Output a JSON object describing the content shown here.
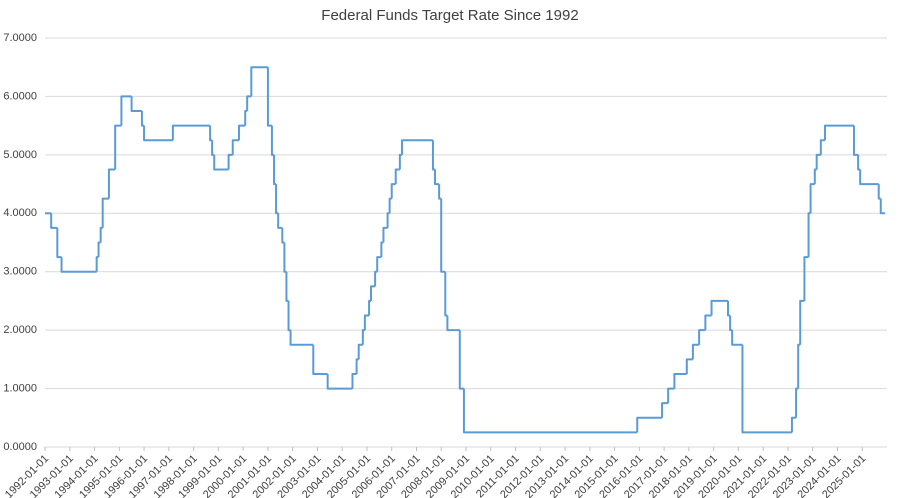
{
  "chart_data": {
    "type": "line",
    "title": "Federal Funds Target Rate Since 1992",
    "color": "#5b9bd5",
    "grid": true,
    "step": true,
    "x": [
      "1992-01-01",
      "1992-04-01",
      "1992-07-01",
      "1992-09-01",
      "1994-02-01",
      "1994-03-01",
      "1994-04-01",
      "1994-05-01",
      "1994-08-01",
      "1994-11-01",
      "1995-02-01",
      "1995-07-01",
      "1995-12-01",
      "1996-01-01",
      "1997-03-01",
      "1998-09-01",
      "1998-10-01",
      "1998-11-01",
      "1999-06-01",
      "1999-08-01",
      "1999-11-01",
      "2000-02-01",
      "2000-03-01",
      "2000-05-01",
      "2001-01-01",
      "2001-03-01",
      "2001-04-01",
      "2001-05-01",
      "2001-06-01",
      "2001-08-01",
      "2001-09-01",
      "2001-10-01",
      "2001-11-01",
      "2001-12-01",
      "2002-11-01",
      "2003-06-01",
      "2004-06-01",
      "2004-08-01",
      "2004-09-01",
      "2004-11-01",
      "2004-12-01",
      "2005-02-01",
      "2005-03-01",
      "2005-05-01",
      "2005-06-01",
      "2005-08-01",
      "2005-09-01",
      "2005-11-01",
      "2005-12-01",
      "2006-01-01",
      "2006-03-01",
      "2006-05-01",
      "2006-06-01",
      "2007-09-01",
      "2007-10-01",
      "2007-12-01",
      "2008-01-01",
      "2008-03-01",
      "2008-04-01",
      "2008-10-01",
      "2008-12-01",
      "2015-12-01",
      "2016-12-01",
      "2017-03-01",
      "2017-06-01",
      "2017-12-01",
      "2018-03-01",
      "2018-06-01",
      "2018-09-01",
      "2018-12-01",
      "2019-08-01",
      "2019-09-01",
      "2019-10-01",
      "2020-03-01",
      "2022-03-01",
      "2022-05-01",
      "2022-06-01",
      "2022-07-01",
      "2022-09-01",
      "2022-11-01",
      "2022-12-01",
      "2023-02-01",
      "2023-03-01",
      "2023-05-01",
      "2023-07-01",
      "2024-09-01",
      "2024-11-01",
      "2024-12-01",
      "2025-09-01",
      "2025-10-01",
      "2025-12-01"
    ],
    "values": [
      4.0,
      3.75,
      3.25,
      3.0,
      3.25,
      3.5,
      3.75,
      4.25,
      4.75,
      5.5,
      6.0,
      5.75,
      5.5,
      5.25,
      5.5,
      5.25,
      5.0,
      4.75,
      5.0,
      5.25,
      5.5,
      5.75,
      6.0,
      6.5,
      5.5,
      5.0,
      4.5,
      4.0,
      3.75,
      3.5,
      3.0,
      2.5,
      2.0,
      1.75,
      1.25,
      1.0,
      1.25,
      1.5,
      1.75,
      2.0,
      2.25,
      2.5,
      2.75,
      3.0,
      3.25,
      3.5,
      3.75,
      4.0,
      4.25,
      4.5,
      4.75,
      5.0,
      5.25,
      4.75,
      4.5,
      4.25,
      3.0,
      2.25,
      2.0,
      1.0,
      0.25,
      0.5,
      0.75,
      1.0,
      1.25,
      1.5,
      1.75,
      2.0,
      2.25,
      2.5,
      2.25,
      2.0,
      1.75,
      0.25,
      0.5,
      1.0,
      1.75,
      2.5,
      3.25,
      4.0,
      4.5,
      4.75,
      5.0,
      5.25,
      5.5,
      5.0,
      4.75,
      4.5,
      4.25,
      4.0,
      4.0
    ],
    "xlim": [
      "1992-01-01",
      "2026-01-01"
    ],
    "xticks": [
      "1992-01-01",
      "1993-01-01",
      "1994-01-01",
      "1995-01-01",
      "1996-01-01",
      "1997-01-01",
      "1998-01-01",
      "1999-01-01",
      "2000-01-01",
      "2001-01-01",
      "2002-01-01",
      "2003-01-01",
      "2004-01-01",
      "2005-01-01",
      "2006-01-01",
      "2007-01-01",
      "2008-01-01",
      "2009-01-01",
      "2010-01-01",
      "2011-01-01",
      "2012-01-01",
      "2013-01-01",
      "2014-01-01",
      "2015-01-01",
      "2016-01-01",
      "2017-01-01",
      "2018-01-01",
      "2019-01-01",
      "2020-01-01",
      "2021-01-01",
      "2022-01-01",
      "2023-01-01",
      "2024-01-01",
      "2025-01-01"
    ],
    "ylim": [
      0,
      7
    ],
    "yticks": [
      {
        "value": 0,
        "label": "0.0000"
      },
      {
        "value": 1,
        "label": "1.0000"
      },
      {
        "value": 2,
        "label": "2.0000"
      },
      {
        "value": 3,
        "label": "3.0000"
      },
      {
        "value": 4,
        "label": "4.0000"
      },
      {
        "value": 5,
        "label": "5.0000"
      },
      {
        "value": 6,
        "label": "6.0000"
      },
      {
        "value": 7,
        "label": "7.0000"
      }
    ]
  }
}
